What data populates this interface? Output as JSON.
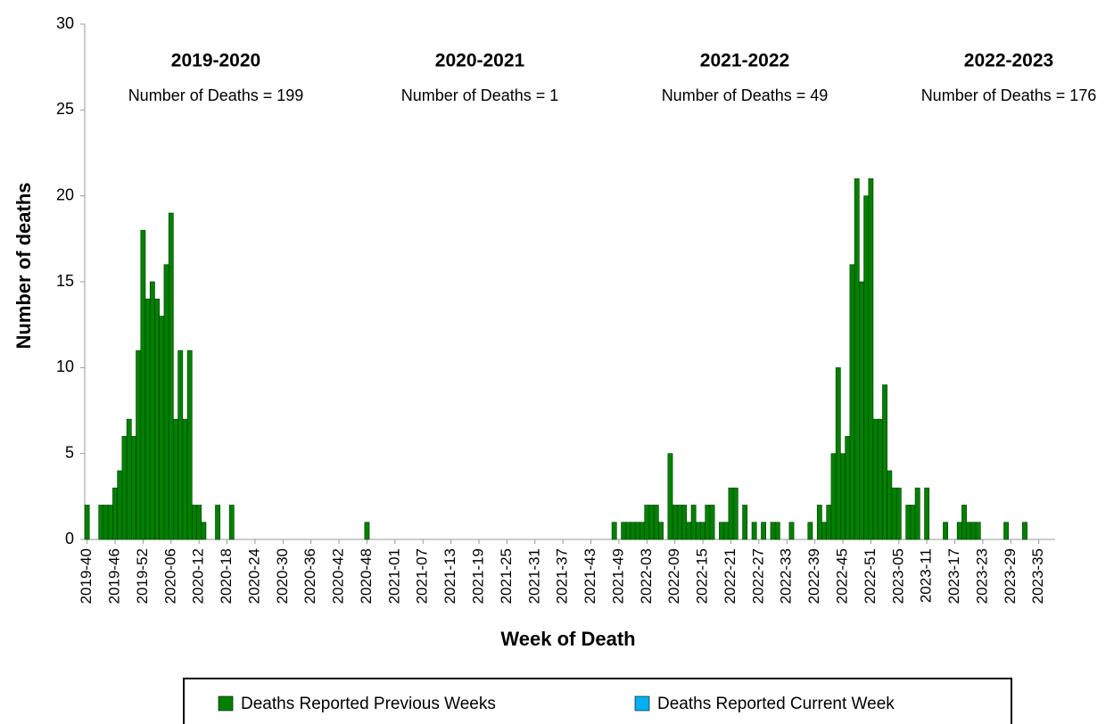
{
  "chart_data": {
    "type": "bar",
    "x_label": "Week of Death",
    "y_label": "Number of deaths",
    "ylim": [
      0,
      30
    ],
    "yticks": [
      0,
      5,
      10,
      15,
      20,
      25,
      30
    ],
    "stacked": true,
    "legend": "bottom",
    "annotations": [
      {
        "title": "2019-2020",
        "text": "Number of Deaths = 199"
      },
      {
        "title": "2020-2021",
        "text": "Number of Deaths = 1"
      },
      {
        "title": "2021-2022",
        "text": "Number of Deaths = 49"
      },
      {
        "title": "2022-2023",
        "text": "Number of Deaths = 176"
      }
    ],
    "categories": [
      "2019-40",
      null,
      null,
      null,
      null,
      null,
      "2019-46",
      null,
      null,
      null,
      null,
      null,
      "2019-52",
      null,
      null,
      null,
      null,
      null,
      "2020-06",
      null,
      null,
      null,
      null,
      null,
      "2020-12",
      null,
      null,
      null,
      null,
      null,
      "2020-18",
      null,
      null,
      null,
      null,
      null,
      "2020-24",
      null,
      null,
      null,
      null,
      null,
      "2020-30",
      null,
      null,
      null,
      null,
      null,
      "2020-36",
      null,
      null,
      null,
      null,
      null,
      "2020-42",
      null,
      null,
      null,
      null,
      null,
      "2020-48",
      null,
      null,
      null,
      null,
      null,
      "2021-01",
      null,
      null,
      null,
      null,
      null,
      "2021-07",
      null,
      null,
      null,
      null,
      null,
      "2021-13",
      null,
      null,
      null,
      null,
      null,
      "2021-19",
      null,
      null,
      null,
      null,
      null,
      "2021-25",
      null,
      null,
      null,
      null,
      null,
      "2021-31",
      null,
      null,
      null,
      null,
      null,
      "2021-37",
      null,
      null,
      null,
      null,
      null,
      "2021-43",
      null,
      null,
      null,
      null,
      null,
      "2021-49",
      null,
      null,
      null,
      null,
      null,
      "2022-03",
      null,
      null,
      null,
      null,
      null,
      "2022-09",
      null,
      null,
      null,
      null,
      null,
      "2022-15",
      null,
      null,
      null,
      null,
      null,
      "2022-21",
      null,
      null,
      null,
      null,
      null,
      "2022-27",
      null,
      null,
      null,
      null,
      null,
      "2022-33",
      null,
      null,
      null,
      null,
      null,
      "2022-39",
      null,
      null,
      null,
      null,
      null,
      "2022-45",
      null,
      null,
      null,
      null,
      null,
      "2022-51",
      null,
      null,
      null,
      null,
      null,
      "2023-05",
      null,
      null,
      null,
      null,
      null,
      "2023-11",
      null,
      null,
      null,
      null,
      null,
      "2023-17",
      null,
      null,
      null,
      null,
      null,
      "2023-23",
      null,
      null,
      null,
      null,
      null,
      "2023-29",
      null,
      null,
      null,
      null,
      null,
      "2023-35",
      null,
      null,
      null
    ],
    "series": [
      {
        "name": "Deaths Reported Previous Weeks",
        "color": "#008000",
        "values": [
          2,
          0,
          0,
          2,
          2,
          2,
          3,
          4,
          6,
          7,
          6,
          11,
          18,
          14,
          15,
          14,
          13,
          16,
          19,
          7,
          11,
          7,
          11,
          2,
          2,
          1,
          0,
          0,
          2,
          0,
          0,
          2,
          0,
          0,
          0,
          0,
          0,
          0,
          0,
          0,
          0,
          0,
          0,
          0,
          0,
          0,
          0,
          0,
          0,
          0,
          0,
          0,
          0,
          0,
          0,
          0,
          0,
          0,
          0,
          0,
          1,
          0,
          0,
          0,
          0,
          0,
          0,
          0,
          0,
          0,
          0,
          0,
          0,
          0,
          0,
          0,
          0,
          0,
          0,
          0,
          0,
          0,
          0,
          0,
          0,
          0,
          0,
          0,
          0,
          0,
          0,
          0,
          0,
          0,
          0,
          0,
          0,
          0,
          0,
          0,
          0,
          0,
          0,
          0,
          0,
          0,
          0,
          0,
          0,
          0,
          0,
          0,
          0,
          1,
          0,
          1,
          1,
          1,
          1,
          1,
          2,
          2,
          2,
          1,
          0,
          5,
          2,
          2,
          2,
          1,
          2,
          1,
          1,
          2,
          2,
          0,
          1,
          1,
          3,
          3,
          0,
          2,
          0,
          1,
          0,
          1,
          0,
          1,
          1,
          0,
          0,
          1,
          0,
          0,
          0,
          1,
          0,
          2,
          1,
          2,
          5,
          10,
          5,
          6,
          16,
          21,
          15,
          20,
          21,
          7,
          7,
          9,
          4,
          3,
          3,
          0,
          2,
          2,
          3,
          0,
          3,
          0,
          0,
          0,
          1,
          0,
          0,
          1,
          2,
          1,
          1,
          1,
          0,
          0,
          0,
          0,
          0,
          1,
          0,
          0,
          0,
          1,
          0,
          0,
          0,
          0,
          0,
          0
        ]
      },
      {
        "name": "Deaths Reported Current Week",
        "color": "#00b0f0",
        "values": [
          0,
          0,
          0,
          0,
          0,
          0,
          0,
          0,
          0,
          0,
          0,
          0,
          0,
          0,
          0,
          0,
          0,
          0,
          0,
          0,
          0,
          0,
          0,
          0,
          0,
          0,
          0,
          0,
          0,
          0,
          0,
          0,
          0,
          0,
          0,
          0,
          0,
          0,
          0,
          0,
          0,
          0,
          0,
          0,
          0,
          0,
          0,
          0,
          0,
          0,
          0,
          0,
          0,
          0,
          0,
          0,
          0,
          0,
          0,
          0,
          0,
          0,
          0,
          0,
          0,
          0,
          0,
          0,
          0,
          0,
          0,
          0,
          0,
          0,
          0,
          0,
          0,
          0,
          0,
          0,
          0,
          0,
          0,
          0,
          0,
          0,
          0,
          0,
          0,
          0,
          0,
          0,
          0,
          0,
          0,
          0,
          0,
          0,
          0,
          0,
          0,
          0,
          0,
          0,
          0,
          0,
          0,
          0,
          0,
          0,
          0,
          0,
          0,
          0,
          0,
          0,
          0,
          0,
          0,
          0,
          0,
          0,
          0,
          0,
          0,
          0,
          0,
          0,
          0,
          0,
          0,
          0,
          0,
          0,
          0,
          0,
          0,
          0,
          0,
          0,
          0,
          0,
          0,
          0,
          0,
          0,
          0,
          0,
          0,
          0,
          0,
          0,
          0,
          0,
          0,
          0,
          0,
          0,
          0,
          0,
          0,
          0,
          0,
          0,
          0,
          0,
          0,
          0,
          0,
          0,
          0,
          0,
          0,
          0,
          0,
          0,
          0,
          0,
          0,
          0,
          0,
          0,
          0,
          0,
          0,
          0,
          0,
          0,
          0,
          0,
          0,
          0,
          0,
          0,
          0,
          0,
          0,
          0,
          0,
          0,
          0,
          0,
          0,
          0,
          0,
          0,
          0,
          0
        ]
      }
    ]
  }
}
